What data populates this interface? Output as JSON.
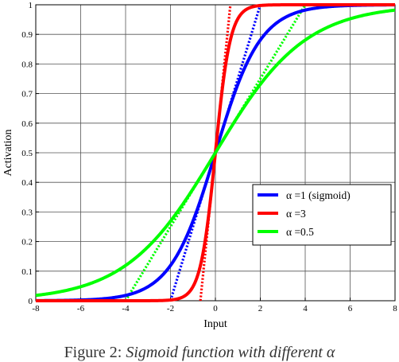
{
  "chart_data": {
    "type": "line",
    "xlabel": "Input",
    "ylabel": "Activation",
    "xlim": [
      -8,
      8
    ],
    "ylim": [
      0,
      1
    ],
    "x_ticks": [
      -8,
      -6,
      -4,
      -2,
      0,
      2,
      4,
      6,
      8
    ],
    "y_ticks": [
      0,
      0.1,
      0.2,
      0.3,
      0.4,
      0.5,
      0.6,
      0.7,
      0.8,
      0.9,
      1
    ],
    "grid": true,
    "legend_position": "lower-right",
    "series": [
      {
        "name": "α =1 (sigmoid)",
        "color": "#0000ff",
        "alpha": 1,
        "x": [
          -8,
          -7,
          -6,
          -5,
          -4,
          -3,
          -2,
          -1.5,
          -1,
          -0.5,
          0,
          0.5,
          1,
          1.5,
          2,
          3,
          4,
          5,
          6,
          7,
          8
        ],
        "y": [
          0.0003,
          0.0009,
          0.0025,
          0.0067,
          0.018,
          0.047,
          0.119,
          0.182,
          0.269,
          0.378,
          0.5,
          0.622,
          0.731,
          0.818,
          0.881,
          0.953,
          0.982,
          0.993,
          0.998,
          0.999,
          1.0
        ]
      },
      {
        "name": "α =3",
        "color": "#ff0000",
        "alpha": 3,
        "x": [
          -8,
          -3,
          -2,
          -1.5,
          -1,
          -0.75,
          -0.5,
          -0.25,
          0,
          0.25,
          0.5,
          0.75,
          1,
          1.5,
          2,
          3,
          8
        ],
        "y": [
          0,
          0.0001,
          0.0025,
          0.011,
          0.047,
          0.095,
          0.182,
          0.321,
          0.5,
          0.679,
          0.818,
          0.905,
          0.953,
          0.989,
          0.998,
          1.0,
          1.0
        ]
      },
      {
        "name": "α =0.5",
        "color": "#00ff00",
        "alpha": 0.5,
        "x": [
          -8,
          -7,
          -6,
          -5,
          -4,
          -3,
          -2,
          -1,
          0,
          1,
          2,
          3,
          4,
          5,
          6,
          7,
          8
        ],
        "y": [
          0.018,
          0.029,
          0.047,
          0.076,
          0.119,
          0.182,
          0.269,
          0.378,
          0.5,
          0.622,
          0.731,
          0.818,
          0.881,
          0.924,
          0.953,
          0.971,
          0.982
        ]
      }
    ],
    "tangent_lines": [
      {
        "color": "#0000ff",
        "x": [
          -2,
          2
        ],
        "y": [
          0,
          1
        ]
      },
      {
        "color": "#ff0000",
        "x": [
          -0.667,
          0.667
        ],
        "y": [
          0,
          1
        ]
      },
      {
        "color": "#00ff00",
        "x": [
          -4,
          4
        ],
        "y": [
          0,
          1
        ]
      }
    ]
  },
  "caption": {
    "prefix": "Figure 2: ",
    "body": "Sigmoid function with different α"
  }
}
